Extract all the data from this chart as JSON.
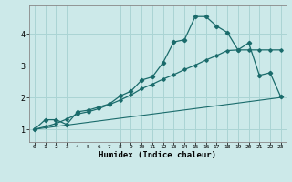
{
  "xlabel": "Humidex (Indice chaleur)",
  "ylabel": "",
  "bg_color": "#cce9e9",
  "grid_color": "#aad4d4",
  "line_color": "#1a6b6b",
  "xlim": [
    -0.5,
    23.5
  ],
  "ylim": [
    0.6,
    4.9
  ],
  "xticks": [
    0,
    1,
    2,
    3,
    4,
    5,
    6,
    7,
    8,
    9,
    10,
    11,
    12,
    13,
    14,
    15,
    16,
    17,
    18,
    19,
    20,
    21,
    22,
    23
  ],
  "yticks": [
    1,
    2,
    3,
    4
  ],
  "curve1_x": [
    0,
    1,
    2,
    3,
    4,
    5,
    6,
    7,
    8,
    9,
    10,
    11,
    12,
    13,
    14,
    15,
    16,
    17,
    18,
    19,
    20,
    21,
    22,
    23
  ],
  "curve1_y": [
    1.0,
    1.3,
    1.3,
    1.15,
    1.55,
    1.6,
    1.7,
    1.8,
    2.05,
    2.2,
    2.55,
    2.65,
    3.1,
    3.75,
    3.82,
    4.55,
    4.55,
    4.25,
    4.05,
    3.5,
    3.72,
    2.7,
    2.78,
    2.02
  ],
  "curve2_x": [
    0,
    1,
    2,
    3,
    4,
    5,
    6,
    7,
    8,
    9,
    10,
    11,
    12,
    13,
    14,
    15,
    16,
    17,
    18,
    19,
    20,
    21,
    22,
    23
  ],
  "curve2_y": [
    1.0,
    1.08,
    1.18,
    1.32,
    1.48,
    1.55,
    1.65,
    1.78,
    1.92,
    2.08,
    2.28,
    2.42,
    2.58,
    2.72,
    2.88,
    3.02,
    3.18,
    3.32,
    3.48,
    3.5,
    3.5,
    3.5,
    3.5,
    3.5
  ],
  "curve3_x": [
    0,
    23
  ],
  "curve3_y": [
    1.0,
    2.0
  ]
}
